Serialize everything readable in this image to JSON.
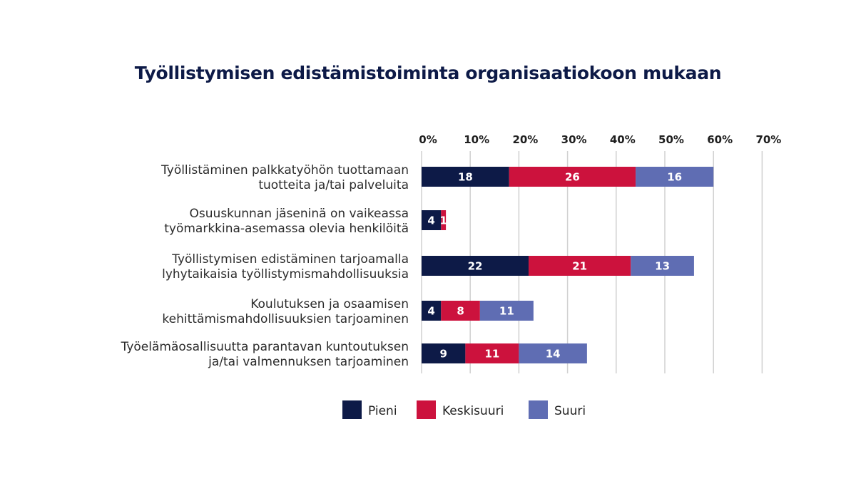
{
  "chart_data": {
    "type": "bar",
    "orientation": "horizontal",
    "stacked": true,
    "title": "Työllistymisen edistämistoiminta organisaatiokoon mukaan",
    "xlabel": "",
    "ylabel": "",
    "xlim": [
      0,
      70
    ],
    "x_ticks": [
      "0%",
      "10%",
      "20%",
      "30%",
      "40%",
      "50%",
      "60%",
      "70%"
    ],
    "x_tick_values": [
      0,
      10,
      20,
      30,
      40,
      50,
      60,
      70
    ],
    "x_axis_position": "top",
    "grid": true,
    "legend_position": "bottom",
    "categories": [
      [
        "Työllistäminen palkkatyöhön tuottamaan",
        "tuotteita ja/tai palveluita"
      ],
      [
        "Osuuskunnan jäseninä on vaikeassa",
        "työmarkkina-asemassa olevia henkilöitä"
      ],
      [
        "Työllistymisen edistäminen tarjoamalla",
        "lyhytaikaisia työllistymismahdollisuuksia"
      ],
      [
        "Koulutuksen ja osaamisen",
        "kehittämismahdollisuuksien tarjoaminen"
      ],
      [
        "Työelämäosallisuutta parantavan kuntoutuksen",
        "ja/tai valmennuksen tarjoaminen"
      ]
    ],
    "series": [
      {
        "name": "Pieni",
        "color": "#0d1a47",
        "values": [
          18,
          4,
          22,
          4,
          9
        ]
      },
      {
        "name": "Keskisuuri",
        "color": "#cc123d",
        "values": [
          26,
          1,
          21,
          8,
          11
        ]
      },
      {
        "name": "Suuri",
        "color": "#5f6db3",
        "values": [
          16,
          null,
          13,
          11,
          14
        ]
      }
    ]
  }
}
